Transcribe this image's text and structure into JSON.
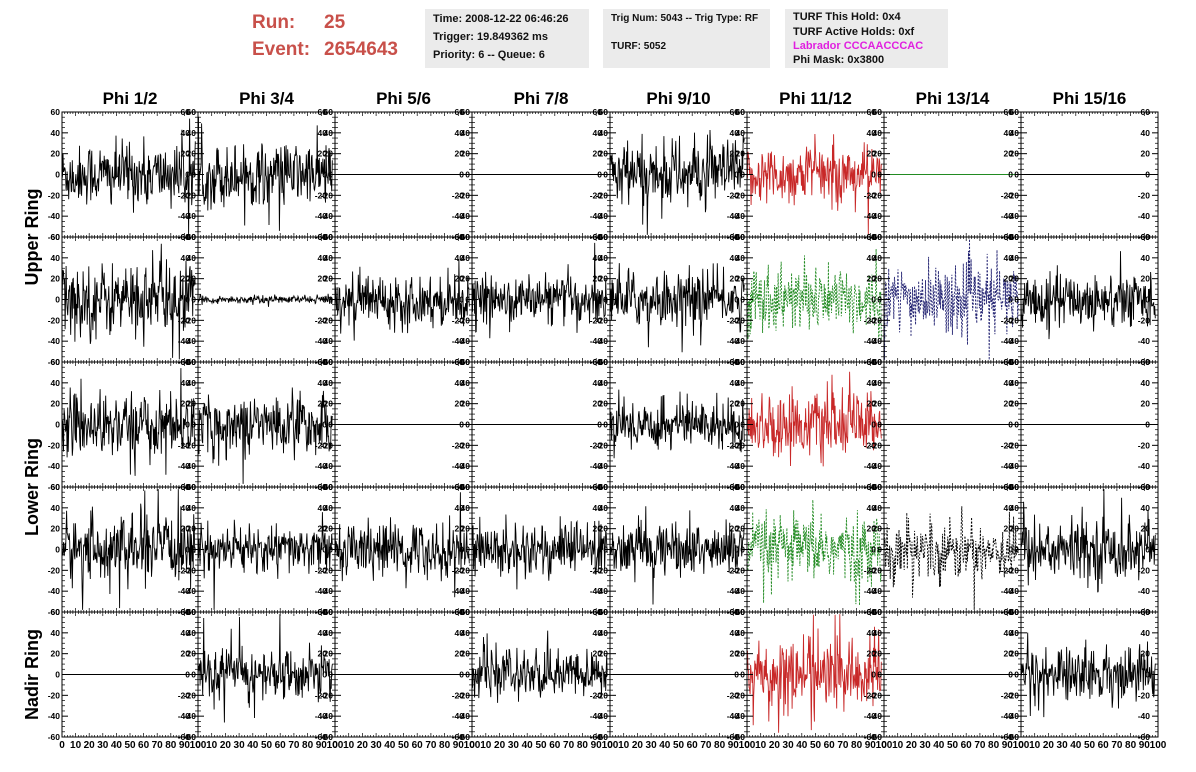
{
  "header": {
    "run_label": "Run:",
    "run_value": "25",
    "event_label": "Event:",
    "event_value": "2654643",
    "time": "Time: 2008-12-22 06:46:26",
    "trigger": "Trigger: 19.849362 ms",
    "priority": "Priority: 6 -- Queue: 6",
    "trig_num": "Trig Num: 5043 -- Trig Type: RF",
    "turf": "TURF: 5052",
    "turf_this_hold": "TURF This Hold: 0x4",
    "turf_active_holds": "TURF Active Holds: 0xf",
    "labrador": "Labrador CCCAACCCAC",
    "phi_mask": "Phi Mask: 0x3800",
    "labrador_color": "#e020e0",
    "run_color": "#c8504a"
  },
  "chart_data": {
    "type": "line",
    "columns": [
      "Phi 1/2",
      "Phi 3/4",
      "Phi 5/6",
      "Phi 7/8",
      "Phi 9/10",
      "Phi 11/12",
      "Phi 13/14",
      "Phi 15/16"
    ],
    "row_groups": [
      {
        "label": "Upper Ring",
        "rows": [
          0,
          1
        ]
      },
      {
        "label": "Lower Ring",
        "rows": [
          2,
          3
        ]
      },
      {
        "label": "Nadir Ring",
        "rows": [
          4
        ]
      }
    ],
    "ylim": [
      -60,
      60
    ],
    "y_ticks": [
      -60,
      -40,
      -20,
      0,
      20,
      40,
      60
    ],
    "xlim": [
      0,
      100
    ],
    "x_ticks": [
      0,
      10,
      20,
      30,
      40,
      50,
      60,
      70,
      80,
      90,
      100
    ],
    "grid": false,
    "panels": [
      [
        {
          "state": "signal",
          "amp": 16,
          "color": "#000000",
          "style": "solid"
        },
        {
          "state": "signal",
          "amp": 16,
          "color": "#000000",
          "style": "solid"
        },
        {
          "state": "flat",
          "color": "#000000"
        },
        {
          "state": "flat",
          "color": "#000000"
        },
        {
          "state": "signal",
          "amp": 17,
          "color": "#000000",
          "style": "solid"
        },
        {
          "state": "signal",
          "amp": 15,
          "color": "#c82828",
          "style": "solid"
        },
        {
          "state": "flat",
          "color": "#228b22"
        },
        {
          "state": "flat",
          "color": "#000000"
        }
      ],
      [
        {
          "state": "signal",
          "amp": 19,
          "color": "#000000",
          "style": "solid"
        },
        {
          "state": "signal",
          "amp": 2,
          "color": "#000000",
          "style": "solid"
        },
        {
          "state": "signal",
          "amp": 13,
          "color": "#000000",
          "style": "solid"
        },
        {
          "state": "signal",
          "amp": 12,
          "color": "#000000",
          "style": "solid"
        },
        {
          "state": "signal",
          "amp": 14,
          "color": "#000000",
          "style": "solid"
        },
        {
          "state": "signal",
          "amp": 17,
          "color": "#228b22",
          "style": "dotted"
        },
        {
          "state": "signal",
          "amp": 17,
          "color": "#202070",
          "style": "dotted"
        },
        {
          "state": "signal",
          "amp": 14,
          "color": "#000000",
          "style": "solid"
        }
      ],
      [
        {
          "state": "signal",
          "amp": 16,
          "color": "#000000",
          "style": "solid"
        },
        {
          "state": "signal",
          "amp": 15,
          "color": "#000000",
          "style": "solid"
        },
        {
          "state": "flat",
          "color": "#000000"
        },
        {
          "state": "flat",
          "color": "#000000"
        },
        {
          "state": "signal",
          "amp": 13,
          "color": "#000000",
          "style": "solid"
        },
        {
          "state": "signal",
          "amp": 16,
          "color": "#c82828",
          "style": "solid"
        },
        {
          "state": "flat",
          "color": "#000000"
        },
        {
          "state": "flat",
          "color": "#000000"
        }
      ],
      [
        {
          "state": "signal",
          "amp": 17,
          "color": "#000000",
          "style": "solid"
        },
        {
          "state": "signal",
          "amp": 12,
          "color": "#000000",
          "style": "solid"
        },
        {
          "state": "signal",
          "amp": 14,
          "color": "#000000",
          "style": "solid"
        },
        {
          "state": "signal",
          "amp": 14,
          "color": "#000000",
          "style": "solid"
        },
        {
          "state": "signal",
          "amp": 14,
          "color": "#000000",
          "style": "solid"
        },
        {
          "state": "signal",
          "amp": 17,
          "color": "#228b22",
          "style": "dotted"
        },
        {
          "state": "signal",
          "amp": 15,
          "color": "#000000",
          "style": "dotted"
        },
        {
          "state": "signal",
          "amp": 16,
          "color": "#000000",
          "style": "solid"
        }
      ],
      [
        {
          "state": "flat",
          "color": "#000000"
        },
        {
          "state": "signal",
          "amp": 13,
          "color": "#000000",
          "style": "solid"
        },
        {
          "state": "flat",
          "color": "#000000"
        },
        {
          "state": "signal",
          "amp": 12,
          "color": "#000000",
          "style": "solid"
        },
        {
          "state": "flat",
          "color": "#000000"
        },
        {
          "state": "signal",
          "amp": 19,
          "color": "#c82828",
          "style": "solid"
        },
        {
          "state": "flat",
          "color": "#000000"
        },
        {
          "state": "signal",
          "amp": 14,
          "color": "#000000",
          "style": "solid"
        }
      ]
    ]
  }
}
